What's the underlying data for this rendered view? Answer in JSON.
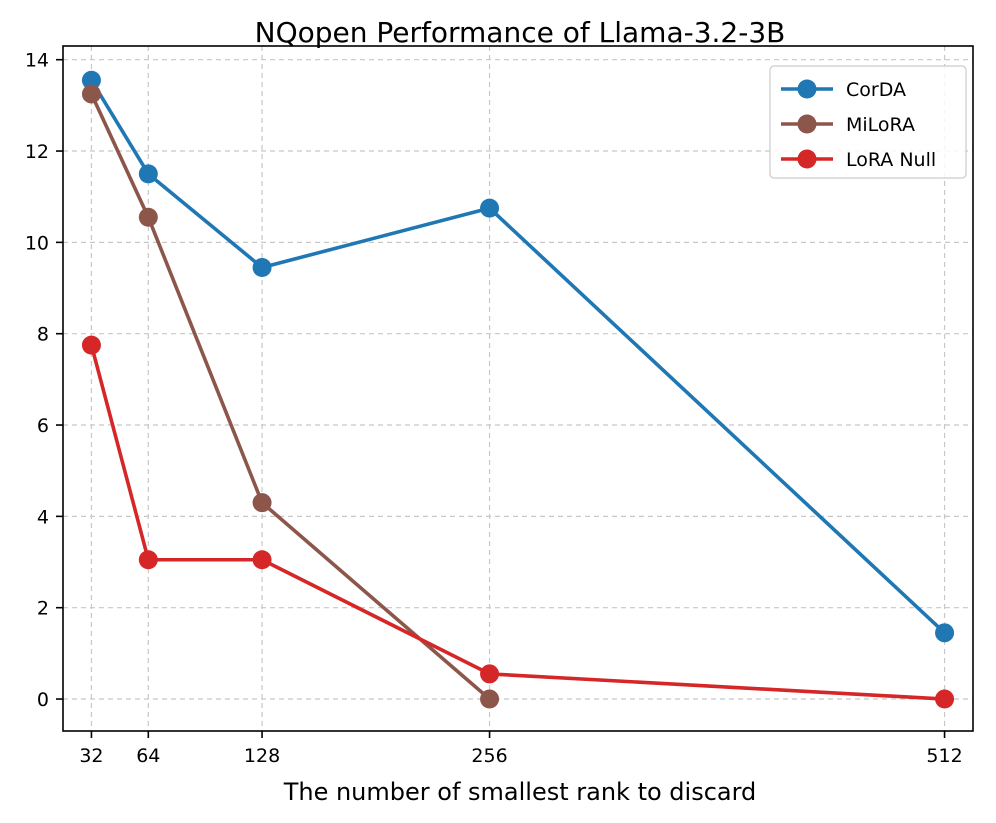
{
  "chart_data": {
    "type": "line",
    "title": "NQopen Performance of Llama-3.2-3B",
    "xlabel": "The number of smallest rank to discard",
    "ylabel": "",
    "x": [
      32,
      64,
      128,
      256,
      512
    ],
    "xticks": [
      32,
      64,
      128,
      256,
      512
    ],
    "xlim": [
      16,
      528
    ],
    "ylim": [
      -0.7,
      14.3
    ],
    "yticks": [
      0,
      2,
      4,
      6,
      8,
      10,
      12,
      14
    ],
    "grid": true,
    "legend_position": "top-right",
    "series": [
      {
        "name": "CorDA",
        "color": "#1f77b4",
        "values": [
          13.55,
          11.5,
          9.45,
          10.75,
          1.45
        ]
      },
      {
        "name": "MiLoRA",
        "color": "#8c564b",
        "values": [
          13.25,
          10.55,
          4.3,
          0.0,
          null
        ]
      },
      {
        "name": "LoRA Null",
        "color": "#d62728",
        "values": [
          7.75,
          3.05,
          3.05,
          0.55,
          0.0
        ]
      }
    ]
  }
}
